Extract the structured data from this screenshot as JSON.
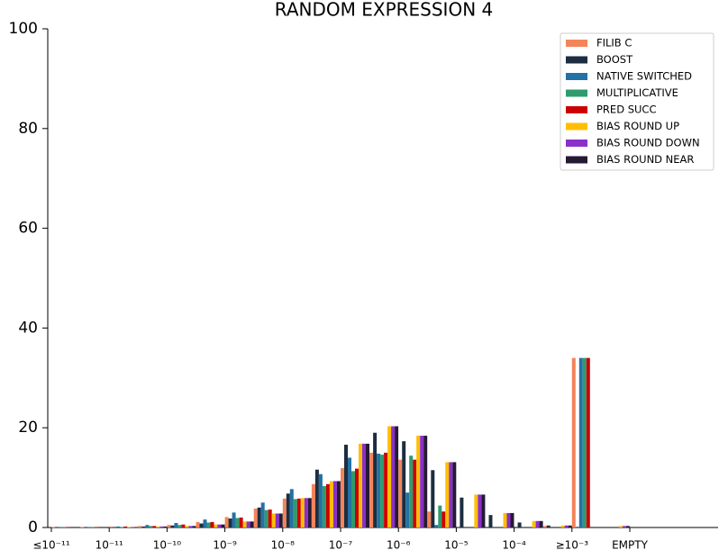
{
  "chart_data": {
    "type": "bar",
    "title": "RANDOM EXPRESSION 4",
    "categories": [
      "≤10⁻¹¹",
      null,
      "10⁻¹¹",
      null,
      "10⁻¹⁰",
      null,
      "10⁻⁹",
      null,
      "10⁻⁸",
      null,
      "10⁻⁷",
      null,
      "10⁻⁶",
      null,
      "10⁻⁵",
      null,
      "10⁻⁴",
      null,
      "≥10⁻³",
      null,
      "EMPTY"
    ],
    "series": [
      {
        "name": "FILIB C",
        "color": "#f4845a",
        "values": [
          0.1,
          0.1,
          0.2,
          0.3,
          0.5,
          1.1,
          2.1,
          3.8,
          5.8,
          8.7,
          11.9,
          15.0,
          13.6,
          3.2,
          0,
          0,
          0,
          0.3,
          34,
          0,
          0
        ]
      },
      {
        "name": "BOOST",
        "color": "#1c2e40",
        "values": [
          0.1,
          0.1,
          0.1,
          0.2,
          0.4,
          0.8,
          1.8,
          4.0,
          6.8,
          11.6,
          16.6,
          19.0,
          17.3,
          11.5,
          6.0,
          2.5,
          1.0,
          0.4,
          0,
          0,
          0
        ]
      },
      {
        "name": "NATIVE SWITCHED",
        "color": "#2471a3",
        "values": [
          0.1,
          0.1,
          0.2,
          0.5,
          0.9,
          1.6,
          3.0,
          5.0,
          7.7,
          10.7,
          14.0,
          14.8,
          7.0,
          0.5,
          0,
          0,
          0,
          0,
          34,
          0,
          0
        ]
      },
      {
        "name": "MULTIPLICATIVE",
        "color": "#2e9b6e",
        "values": [
          0.1,
          0.1,
          0.1,
          0.3,
          0.5,
          1.0,
          1.9,
          3.5,
          5.7,
          8.3,
          11.3,
          14.6,
          14.4,
          4.4,
          0,
          0,
          0,
          0,
          34,
          0,
          0
        ]
      },
      {
        "name": "PRED SUCC",
        "color": "#cc0000",
        "values": [
          0.1,
          0.1,
          0.2,
          0.3,
          0.6,
          1.1,
          2.0,
          3.6,
          5.8,
          8.7,
          11.8,
          15.0,
          13.6,
          3.2,
          0,
          0,
          0,
          0,
          34,
          0,
          0
        ]
      },
      {
        "name": "BIAS ROUND UP",
        "color": "#ffbf00",
        "values": [
          0,
          0,
          0.1,
          0.2,
          0.3,
          0.6,
          1.2,
          2.8,
          5.9,
          9.3,
          16.8,
          20.3,
          18.4,
          13.1,
          6.6,
          2.9,
          1.3,
          0.4,
          0,
          0.3,
          0
        ]
      },
      {
        "name": "BIAS ROUND DOWN",
        "color": "#8b2fc9",
        "values": [
          0,
          0,
          0.1,
          0.2,
          0.3,
          0.6,
          1.2,
          2.8,
          5.9,
          9.3,
          16.8,
          20.3,
          18.4,
          13.1,
          6.6,
          2.9,
          1.3,
          0.4,
          0,
          0.3,
          0
        ]
      },
      {
        "name": "BIAS ROUND NEAR",
        "color": "#251a33",
        "values": [
          0,
          0,
          0.1,
          0.2,
          0.3,
          0.6,
          1.2,
          2.8,
          5.9,
          9.3,
          16.8,
          20.3,
          18.4,
          13.1,
          6.6,
          2.9,
          1.3,
          0.4,
          0,
          0.3,
          0
        ]
      }
    ],
    "ylim": [
      0,
      100
    ],
    "yticks": [
      0,
      20,
      40,
      60,
      80,
      100
    ],
    "grid": false,
    "legend": "upper-right"
  }
}
